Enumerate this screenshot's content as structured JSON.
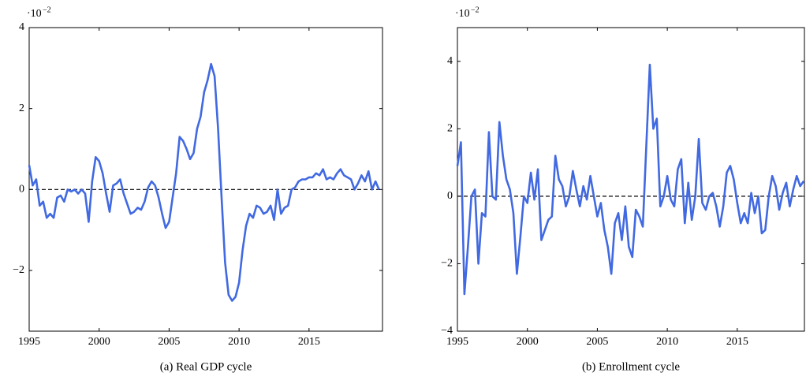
{
  "chart_data": [
    {
      "type": "line",
      "caption": "(a) Real GDP cycle",
      "y_multiplier": "·10",
      "y_multiplier_exp": "−2",
      "color": "#4169e1",
      "hline": 0,
      "xlim": [
        1995,
        2020.25
      ],
      "xticks": [
        1995,
        2000,
        2005,
        2010,
        2015
      ],
      "ylim": [
        -3.5,
        4
      ],
      "yticks": [
        4,
        2,
        0,
        {
          "value": -2,
          "label": "−2"
        }
      ],
      "x": [
        1995,
        1995.25,
        1995.5,
        1995.75,
        1996,
        1996.25,
        1996.5,
        1996.75,
        1997,
        1997.25,
        1997.5,
        1997.75,
        1998,
        1998.25,
        1998.5,
        1998.75,
        1999,
        1999.25,
        1999.5,
        1999.75,
        2000,
        2000.25,
        2000.5,
        2000.75,
        2001,
        2001.25,
        2001.5,
        2001.75,
        2002,
        2002.25,
        2002.5,
        2002.75,
        2003,
        2003.25,
        2003.5,
        2003.75,
        2004,
        2004.25,
        2004.5,
        2004.75,
        2005,
        2005.25,
        2005.5,
        2005.75,
        2006,
        2006.25,
        2006.5,
        2006.75,
        2007,
        2007.25,
        2007.5,
        2007.75,
        2008,
        2008.25,
        2008.5,
        2008.75,
        2009,
        2009.25,
        2009.5,
        2009.75,
        2010,
        2010.25,
        2010.5,
        2010.75,
        2011,
        2011.25,
        2011.5,
        2011.75,
        2012,
        2012.25,
        2012.5,
        2012.75,
        2013,
        2013.25,
        2013.5,
        2013.75,
        2014,
        2014.25,
        2014.5,
        2014.75,
        2015,
        2015.25,
        2015.5,
        2015.75,
        2016,
        2016.25,
        2016.5,
        2016.75,
        2017,
        2017.25,
        2017.5,
        2017.75,
        2018,
        2018.25,
        2018.5,
        2018.75,
        2019,
        2019.25,
        2019.5,
        2019.75,
        2020
      ],
      "values": [
        0.6,
        0.1,
        0.25,
        -0.4,
        -0.3,
        -0.7,
        -0.6,
        -0.7,
        -0.2,
        -0.15,
        -0.3,
        0,
        -0.05,
        0,
        -0.1,
        0,
        -0.1,
        -0.8,
        0.2,
        0.8,
        0.7,
        0.4,
        -0.1,
        -0.55,
        0.1,
        0.15,
        0.25,
        -0.1,
        -0.35,
        -0.6,
        -0.55,
        -0.45,
        -0.5,
        -0.3,
        0.05,
        0.2,
        0.1,
        -0.2,
        -0.6,
        -0.95,
        -0.8,
        -0.2,
        0.4,
        1.3,
        1.2,
        1,
        0.75,
        0.9,
        1.5,
        1.8,
        2.4,
        2.7,
        3.1,
        2.8,
        1.5,
        -0.2,
        -1.8,
        -2.6,
        -2.75,
        -2.65,
        -2.3,
        -1.5,
        -0.9,
        -0.6,
        -0.7,
        -0.4,
        -0.45,
        -0.6,
        -0.55,
        -0.4,
        -0.75,
        0,
        -0.6,
        -0.45,
        -0.4,
        0,
        0.05,
        0.2,
        0.25,
        0.25,
        0.3,
        0.3,
        0.4,
        0.35,
        0.5,
        0.25,
        0.3,
        0.25,
        0.4,
        0.5,
        0.35,
        0.3,
        0.25,
        0,
        0.15,
        0.35,
        0.2,
        0.45,
        0,
        0.2,
        0
      ]
    },
    {
      "type": "line",
      "caption": "(b) Enrollment cycle",
      "y_multiplier": "·10",
      "y_multiplier_exp": "−2",
      "color": "#4169e1",
      "hline": 0,
      "xlim": [
        1995,
        2019.8
      ],
      "xticks": [
        1995,
        2000,
        2005,
        2010,
        2015
      ],
      "ylim": [
        -4,
        5
      ],
      "yticks": [
        {
          "value": -4,
          "label": "−4"
        },
        {
          "value": -2,
          "label": "−2"
        },
        0,
        2,
        4
      ],
      "x": [
        1995,
        1995.25,
        1995.5,
        1995.75,
        1996,
        1996.25,
        1996.5,
        1996.75,
        1997,
        1997.25,
        1997.5,
        1997.75,
        1998,
        1998.25,
        1998.5,
        1998.75,
        1999,
        1999.25,
        1999.5,
        1999.75,
        2000,
        2000.25,
        2000.5,
        2000.75,
        2001,
        2001.25,
        2001.5,
        2001.75,
        2002,
        2002.25,
        2002.5,
        2002.75,
        2003,
        2003.25,
        2003.5,
        2003.75,
        2004,
        2004.25,
        2004.5,
        2004.75,
        2005,
        2005.25,
        2005.5,
        2005.75,
        2006,
        2006.25,
        2006.5,
        2006.75,
        2007,
        2007.25,
        2007.5,
        2007.75,
        2008,
        2008.25,
        2008.5,
        2008.75,
        2009,
        2009.25,
        2009.5,
        2009.75,
        2010,
        2010.25,
        2010.5,
        2010.75,
        2011,
        2011.25,
        2011.5,
        2011.75,
        2012,
        2012.25,
        2012.5,
        2012.75,
        2013,
        2013.25,
        2013.5,
        2013.75,
        2014,
        2014.25,
        2014.5,
        2014.75,
        2015,
        2015.25,
        2015.5,
        2015.75,
        2016,
        2016.25,
        2016.5,
        2016.75,
        2017,
        2017.25,
        2017.5,
        2017.75,
        2018,
        2018.25,
        2018.5,
        2018.75,
        2019,
        2019.25,
        2019.5,
        2019.75
      ],
      "values": [
        0.9,
        1.6,
        -2.9,
        -1.5,
        0,
        0.2,
        -2,
        -0.5,
        -0.6,
        1.9,
        0,
        -0.1,
        2.2,
        1.2,
        0.5,
        0.2,
        -0.5,
        -2.3,
        -1.2,
        0,
        -0.2,
        0.7,
        -0.1,
        0.8,
        -1.3,
        -1,
        -0.7,
        -0.6,
        1.2,
        0.5,
        0.3,
        -0.3,
        0,
        0.75,
        0.2,
        -0.3,
        0.3,
        -0.1,
        0.6,
        0,
        -0.6,
        -0.2,
        -1,
        -1.5,
        -2.3,
        -0.8,
        -0.5,
        -1.3,
        -0.3,
        -1.5,
        -1.8,
        -0.4,
        -0.6,
        -0.9,
        1.5,
        3.9,
        2,
        2.3,
        -0.3,
        0,
        0.6,
        -0.1,
        -0.3,
        0.8,
        1.1,
        -0.8,
        0.4,
        -0.7,
        0,
        1.7,
        -0.2,
        -0.4,
        0,
        0.1,
        -0.3,
        -0.9,
        -0.3,
        0.7,
        0.9,
        0.5,
        -0.2,
        -0.8,
        -0.5,
        -0.8,
        0.1,
        -0.5,
        0,
        -1.1,
        -1,
        0,
        0.6,
        0.3,
        -0.4,
        0.1,
        0.4,
        -0.3,
        0.2,
        0.6,
        0.3,
        0.45
      ]
    }
  ]
}
